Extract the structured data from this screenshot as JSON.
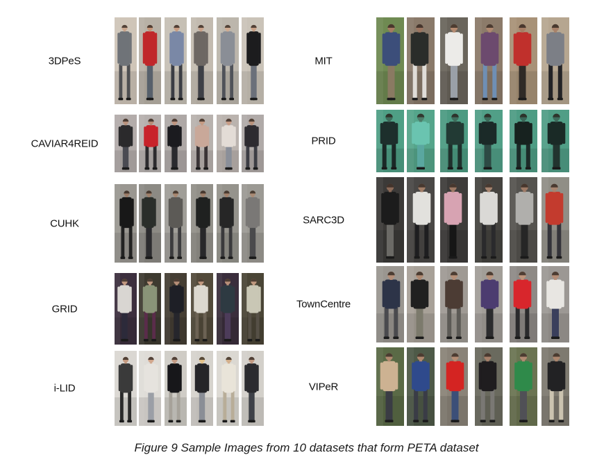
{
  "figure": {
    "caption": "Figure 9 Sample Images from 10 datasets that form PETA dataset"
  },
  "datasets": [
    {
      "name": "3DPeS",
      "samples": [
        {
          "bg": "#cfc5b8",
          "torso": "#6f7378",
          "legs": "#4e4f52",
          "skin": "#c9a58c"
        },
        {
          "bg": "#b8b1a6",
          "torso": "#c0272a",
          "legs": "#57606b",
          "skin": "#c59478"
        },
        {
          "bg": "#c6c0b5",
          "torso": "#7a88a6",
          "legs": "#3b3d44",
          "skin": "#c89c82"
        },
        {
          "bg": "#c3bbb0",
          "torso": "#6d6763",
          "legs": "#3e4046",
          "skin": "#c9a28a"
        },
        {
          "bg": "#bcb6ac",
          "torso": "#8a8e96",
          "legs": "#4f5259",
          "skin": "#d0ab92"
        },
        {
          "bg": "#cac3b8",
          "torso": "#1c1c1e",
          "legs": "#6b707a",
          "skin": "#c9a187"
        }
      ]
    },
    {
      "name": "CAVIAR4REID",
      "samples": [
        {
          "bg": "#b3acaa",
          "torso": "#2b2a2c",
          "legs": "#4a4b52",
          "skin": "#b8917c"
        },
        {
          "bg": "#b6b0ae",
          "torso": "#c8232b",
          "legs": "#2c2b2e",
          "skin": "#b88d78"
        },
        {
          "bg": "#aea8a6",
          "torso": "#1b1b1f",
          "legs": "#2a2a2e",
          "skin": "#bf9580"
        },
        {
          "bg": "#b8b2ae",
          "torso": "#c9a899",
          "legs": "#3a3436",
          "skin": "#c59b84"
        },
        {
          "bg": "#bab3ae",
          "torso": "#e3dcd6",
          "legs": "#8a8f99",
          "skin": "#c79c86"
        },
        {
          "bg": "#b0aaa8",
          "torso": "#2d2b30",
          "legs": "#3c3d44",
          "skin": "#b9927c"
        }
      ]
    },
    {
      "name": "CUHK",
      "samples": [
        {
          "bg": "#9a9791",
          "torso": "#181818",
          "legs": "#222222",
          "skin": "#9c7c68"
        },
        {
          "bg": "#8c8a84",
          "torso": "#2a2e2a",
          "legs": "#2b2b2e",
          "skin": "#9f7f6a"
        },
        {
          "bg": "#a09e98",
          "torso": "#5c5a56",
          "legs": "#3c3c3e",
          "skin": "#a88770"
        },
        {
          "bg": "#929089",
          "torso": "#1f2120",
          "legs": "#28282a",
          "skin": "#9d7d68"
        },
        {
          "bg": "#95938c",
          "torso": "#262626",
          "legs": "#3a3a3c",
          "skin": "#a4826c"
        },
        {
          "bg": "#9c9a94",
          "torso": "#7a7876",
          "legs": "#4a4a4c",
          "skin": "#a98a74"
        }
      ]
    },
    {
      "name": "GRID",
      "samples": [
        {
          "bg": "#3c2f3e",
          "torso": "#d9d6d2",
          "legs": "#2c2a3a",
          "skin": "#c49a82"
        },
        {
          "bg": "#3e3a30",
          "torso": "#8a9478",
          "legs": "#5a2c4a",
          "skin": "#c09880"
        },
        {
          "bg": "#453e34",
          "torso": "#1e1f26",
          "legs": "#26262c",
          "skin": "#b68e78"
        },
        {
          "bg": "#524a3a",
          "torso": "#dcd8cf",
          "legs": "#6c6254",
          "skin": "#c39a80"
        },
        {
          "bg": "#3a2e3c",
          "torso": "#2e3a42",
          "legs": "#4d3c5a",
          "skin": "#b9907a"
        },
        {
          "bg": "#4a4536",
          "torso": "#c9c7b5",
          "legs": "#565046",
          "skin": "#c19a80"
        }
      ]
    },
    {
      "name": "i-LID",
      "samples": [
        {
          "bg": "#dad7d2",
          "torso": "#3a3a3a",
          "legs": "#2a2a2a",
          "skin": "#c59a80"
        },
        {
          "bg": "#dfdcd7",
          "torso": "#e6e3de",
          "legs": "#9b9fa6",
          "skin": "#d2a88e"
        },
        {
          "bg": "#cfccc6",
          "torso": "#17171a",
          "legs": "#a6a29a",
          "skin": "#c49c85"
        },
        {
          "bg": "#d6d3cd",
          "torso": "#252528",
          "legs": "#8a8e96",
          "skin": "#e2c28a"
        },
        {
          "bg": "#dbd8d2",
          "torso": "#e9e4d9",
          "legs": "#b8ad98",
          "skin": "#d4b08c"
        },
        {
          "bg": "#d3d0ca",
          "torso": "#2b2b2f",
          "legs": "#3e4148",
          "skin": "#c29a82"
        }
      ]
    },
    {
      "name": "MIT",
      "samples": [
        {
          "bg": "#6f8a52",
          "torso": "#3c4e7a",
          "legs": "#8a7a62",
          "skin": "#a77c62"
        },
        {
          "bg": "#8a7a6a",
          "torso": "#2a2d2a",
          "legs": "#e0ddd8",
          "skin": "#9c7560"
        },
        {
          "bg": "#6a655c",
          "torso": "#ecebe8",
          "legs": "#9aa0a8",
          "skin": "#b48a70"
        },
        {
          "bg": "#8c7b6a",
          "torso": "#6c4a6e",
          "legs": "#6f8fb4",
          "skin": "#b08870"
        },
        {
          "bg": "#a89278",
          "torso": "#c0302c",
          "legs": "#2f2a26",
          "skin": "#a67d64"
        },
        {
          "bg": "#b6a690",
          "torso": "#7c7f86",
          "legs": "#232326",
          "skin": "#a8826a"
        }
      ]
    },
    {
      "name": "PRID",
      "samples": [
        {
          "bg": "#4f9f85",
          "torso": "#1d2f2c",
          "legs": "#1a2826",
          "skin": "#3d6b5a"
        },
        {
          "bg": "#55a58b",
          "torso": "#6ac4b0",
          "legs": "#5aa7a0",
          "skin": "#4d7d6a"
        },
        {
          "bg": "#4c9b82",
          "torso": "#223a34",
          "legs": "#1f302c",
          "skin": "#3f6e5d"
        },
        {
          "bg": "#519f87",
          "torso": "#1b2a28",
          "legs": "#2d4a44",
          "skin": "#3c6a5a"
        },
        {
          "bg": "#4e9c84",
          "torso": "#17221f",
          "legs": "#1c2a28",
          "skin": "#3a6758"
        },
        {
          "bg": "#509e86",
          "torso": "#1a2a26",
          "legs": "#22342f",
          "skin": "#3e6b5c"
        }
      ]
    },
    {
      "name": "SARC3D",
      "samples": [
        {
          "bg": "#3c3a38",
          "torso": "#1c1c1c",
          "legs": "#6b6a66",
          "skin": "#8a6a58"
        },
        {
          "bg": "#4a4846",
          "torso": "#e2e1dd",
          "legs": "#1e1e20",
          "skin": "#a17e68"
        },
        {
          "bg": "#3e3c3a",
          "torso": "#d7a3b2",
          "legs": "#161616",
          "skin": "#9c7864"
        },
        {
          "bg": "#45433f",
          "torso": "#dad9d6",
          "legs": "#2a2a2c",
          "skin": "#a58470"
        },
        {
          "bg": "#55534f",
          "torso": "#b0afac",
          "legs": "#262626",
          "skin": "#9e7a66"
        },
        {
          "bg": "#908e86",
          "torso": "#c33b2e",
          "legs": "#34343a",
          "skin": "#a88570"
        }
      ]
    },
    {
      "name": "TownCentre",
      "samples": [
        {
          "bg": "#9a9690",
          "torso": "#2d3448",
          "legs": "#4a4a4e",
          "skin": "#b48e78"
        },
        {
          "bg": "#a8a198",
          "torso": "#202020",
          "legs": "#7c7a6c",
          "skin": "#b08a72"
        },
        {
          "bg": "#9f9a94",
          "torso": "#4c3c34",
          "legs": "#5c5a56",
          "skin": "#b58f78"
        },
        {
          "bg": "#a29e98",
          "torso": "#4c3c70",
          "legs": "#2c2c2e",
          "skin": "#b9937c"
        },
        {
          "bg": "#8e8a86",
          "torso": "#d8262c",
          "legs": "#2a2a2c",
          "skin": "#bf957c"
        },
        {
          "bg": "#9c9894",
          "torso": "#e8e6e2",
          "legs": "#3a3f5c",
          "skin": "#b48c76"
        }
      ]
    },
    {
      "name": "VIPeR",
      "samples": [
        {
          "bg": "#5a6a46",
          "torso": "#cdb292",
          "legs": "#3a3c44",
          "skin": "#b08a70"
        },
        {
          "bg": "#4e5a48",
          "torso": "#2f4a8c",
          "legs": "#3a3c46",
          "skin": "#ae876e"
        },
        {
          "bg": "#8a8378",
          "torso": "#d42422",
          "legs": "#3c4f78",
          "skin": "#b58d74"
        },
        {
          "bg": "#6a6a5e",
          "torso": "#1f1d1f",
          "legs": "#7a7874",
          "skin": "#a6806a"
        },
        {
          "bg": "#6b7452",
          "torso": "#2f8a4a",
          "legs": "#505056",
          "skin": "#b18a72"
        },
        {
          "bg": "#7e7a70",
          "torso": "#222224",
          "legs": "#cbc3b0",
          "skin": "#ad866e"
        }
      ]
    }
  ]
}
